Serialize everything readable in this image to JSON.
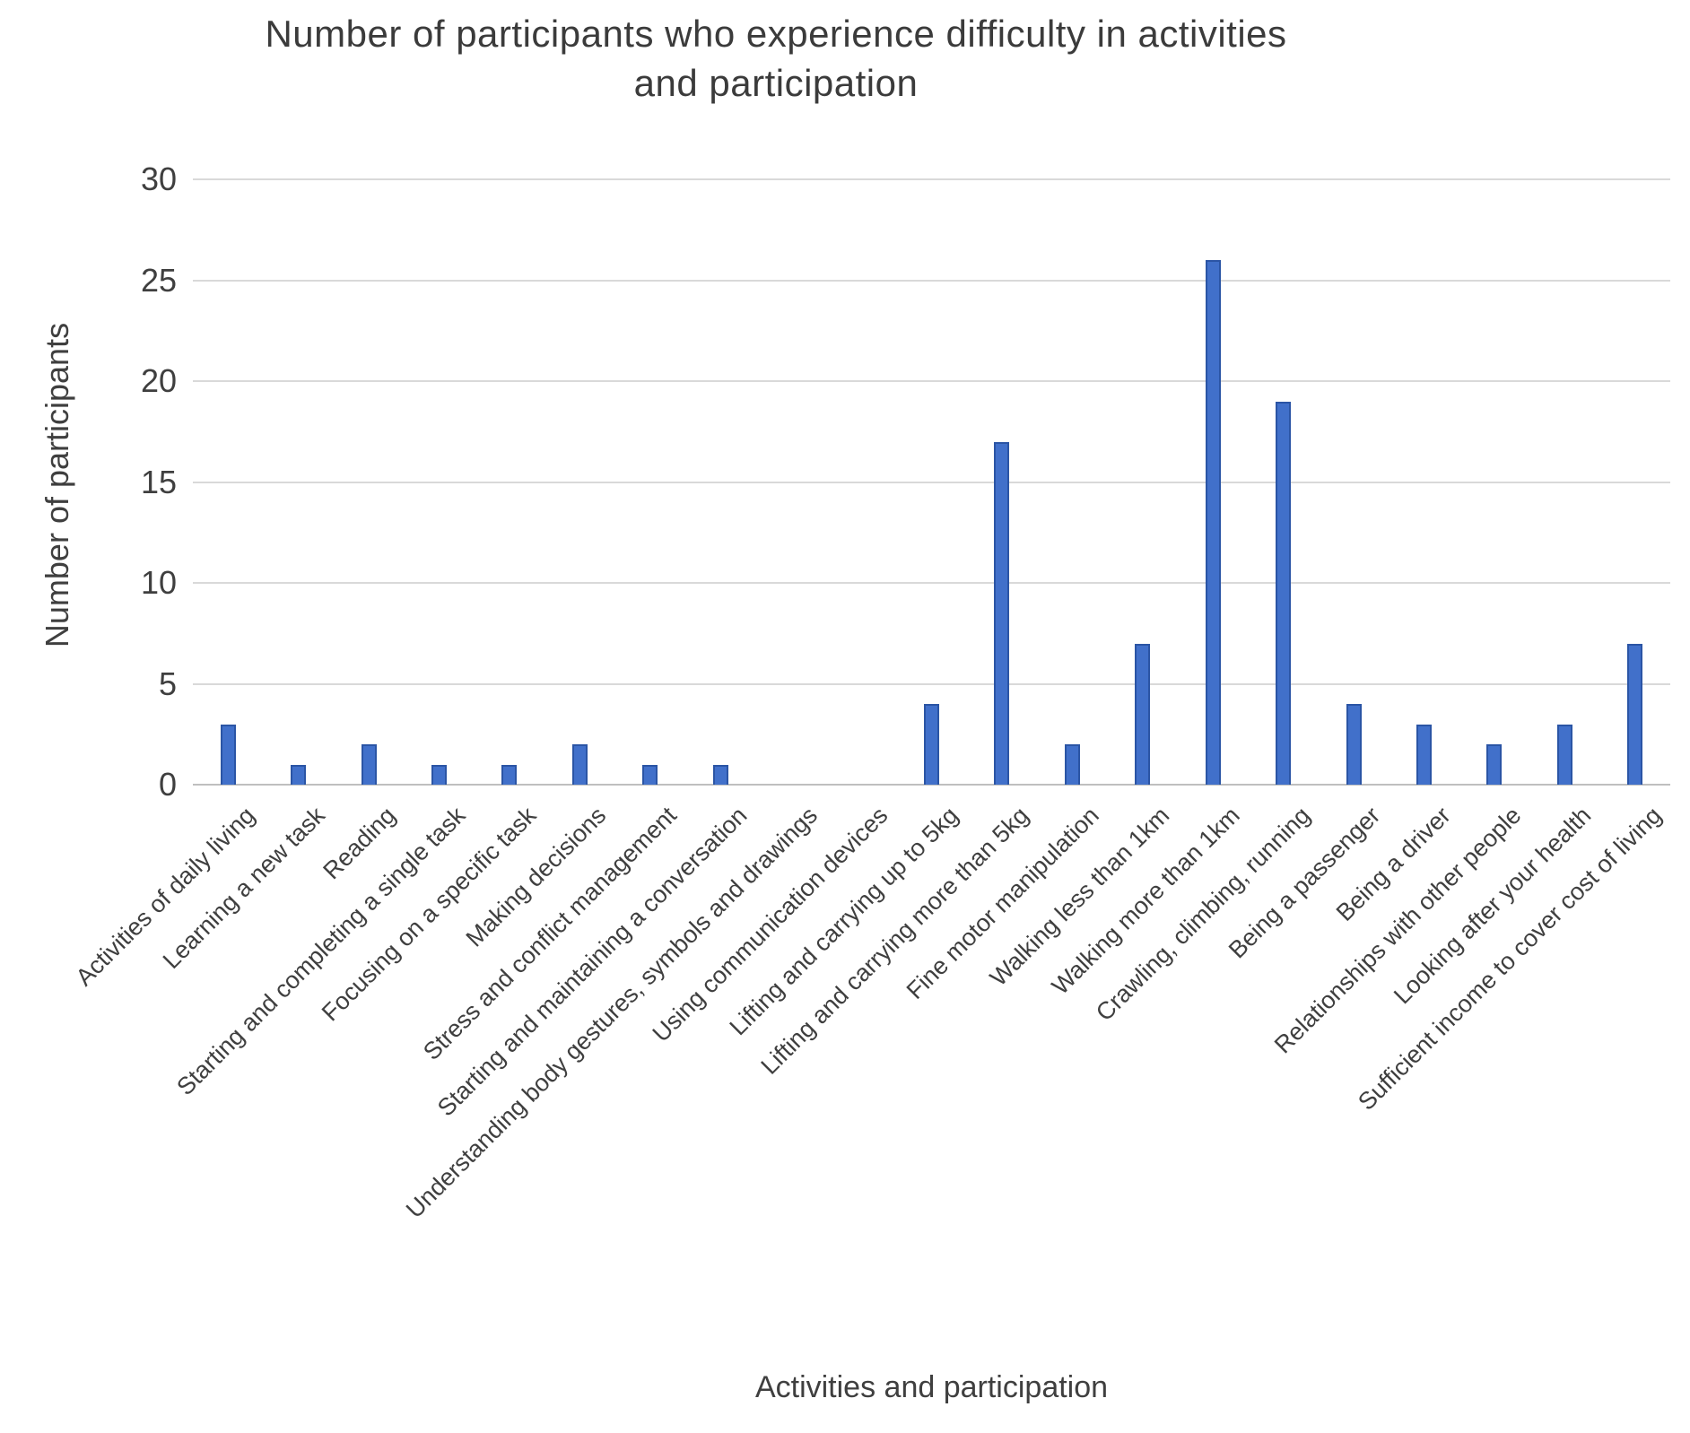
{
  "chart_data": {
    "type": "bar",
    "title": "Number of participants who experience difficulty in activities and participation",
    "title_lines": [
      "Number of participants who experience difficulty in activities",
      "and participation"
    ],
    "xlabel": "Activities and participation",
    "ylabel": "Number of participants",
    "ylim": [
      0,
      30
    ],
    "ytick_step": 5,
    "yticks": [
      0,
      5,
      10,
      15,
      20,
      25,
      30
    ],
    "grid": true,
    "legend": "none",
    "bar_color": "#4472C4",
    "bar_border_color": "#2F5597",
    "gridline_color": "#D9D9D9",
    "text_color": "#3F3F3F",
    "categories": [
      "Activities of daily living",
      "Learning a new task",
      "Reading",
      "Starting and completing a single task",
      "Focusing on a specific task",
      "Making decisions",
      "Stress and conflict management",
      "Starting and maintaining a conversation",
      "Understanding body gestures, symbols and drawings",
      "Using communication devices",
      "Lifting and carrying up to 5kg",
      "Lifting and carrying more than 5kg",
      "Fine motor manipulation",
      "Walking less than 1km",
      "Walking more than 1km",
      "Crawling, climbing, running",
      "Being a passenger",
      "Being a driver",
      "Relationships with other people",
      "Looking after your health",
      "Sufficient income to cover cost of living"
    ],
    "values": [
      3,
      1,
      2,
      1,
      1,
      2,
      1,
      1,
      0,
      0,
      4,
      17,
      2,
      7,
      26,
      19,
      4,
      3,
      2,
      3,
      7
    ]
  }
}
